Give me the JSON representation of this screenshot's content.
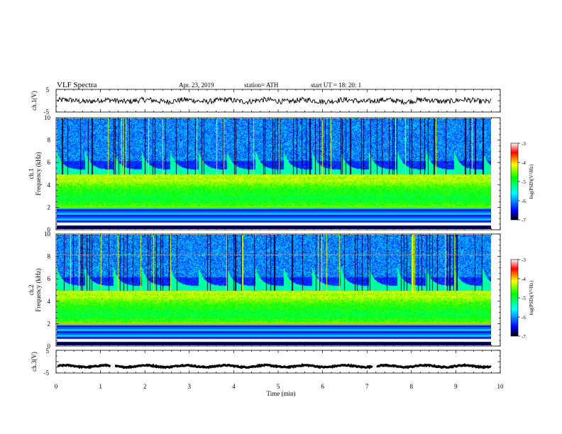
{
  "header": {
    "title": "VLF  Spectra",
    "date": "Apr. 23, 2019",
    "station": "station= ATH",
    "start": "start  UT  =    18: 20: 1"
  },
  "chart_data": [
    {
      "type": "line",
      "name": "ch1-time-series",
      "ylabel": "ch.1(V)",
      "yticks": [
        "5",
        "-5"
      ],
      "ylim": [
        -5,
        5
      ],
      "xlim": [
        0,
        10
      ],
      "level": 0.0,
      "noise_amplitude": 1.2,
      "color": "#000000"
    },
    {
      "type": "heatmap",
      "name": "ch1-spectrogram",
      "ylabel": "ch.1\nFrequency (kHz)",
      "yticks": [
        "0",
        "2",
        "4",
        "6",
        "8",
        "10"
      ],
      "ylim": [
        0,
        10
      ],
      "xlim": [
        0,
        9.8
      ],
      "colorbar": {
        "label": "log(PSD)(V²/Hz)",
        "ticks": [
          "-3",
          "-4",
          "-5",
          "-6",
          "-7"
        ],
        "range": [
          -7,
          -3
        ],
        "colors": [
          "#000000",
          "#0000ff",
          "#00ffff",
          "#00ff00",
          "#ffff00",
          "#ff0000",
          "#ffffff"
        ]
      }
    },
    {
      "type": "heatmap",
      "name": "ch2-spectrogram",
      "ylabel": "ch.2\nFrequency (kHz)",
      "yticks": [
        "0",
        "2",
        "4",
        "6",
        "8",
        "10"
      ],
      "ylim": [
        0,
        10
      ],
      "xlim": [
        0,
        9.8
      ],
      "colorbar": {
        "label": "log(PSD)(V²/Hz)",
        "ticks": [
          "-3",
          "-4",
          "-5",
          "-6",
          "-7"
        ],
        "range": [
          -7,
          -3
        ],
        "colors": [
          "#000000",
          "#0000ff",
          "#00ffff",
          "#00ff00",
          "#ffff00",
          "#ff0000",
          "#ffffff"
        ]
      }
    },
    {
      "type": "line",
      "name": "ch3-time-series",
      "ylabel": "ch.3(V)",
      "yticks": [
        "5",
        "-5"
      ],
      "ylim": [
        -5,
        5
      ],
      "xlim": [
        0,
        10
      ],
      "level": -2.0,
      "noise_amplitude": 0.25,
      "gaps_min": [
        1.27,
        7.17
      ],
      "color": "#000000"
    }
  ],
  "xaxis": {
    "label": "Time  (min)",
    "ticks": [
      "0",
      "1",
      "2",
      "3",
      "4",
      "5",
      "6",
      "7",
      "8",
      "9",
      "10"
    ],
    "range": [
      0,
      10
    ]
  }
}
